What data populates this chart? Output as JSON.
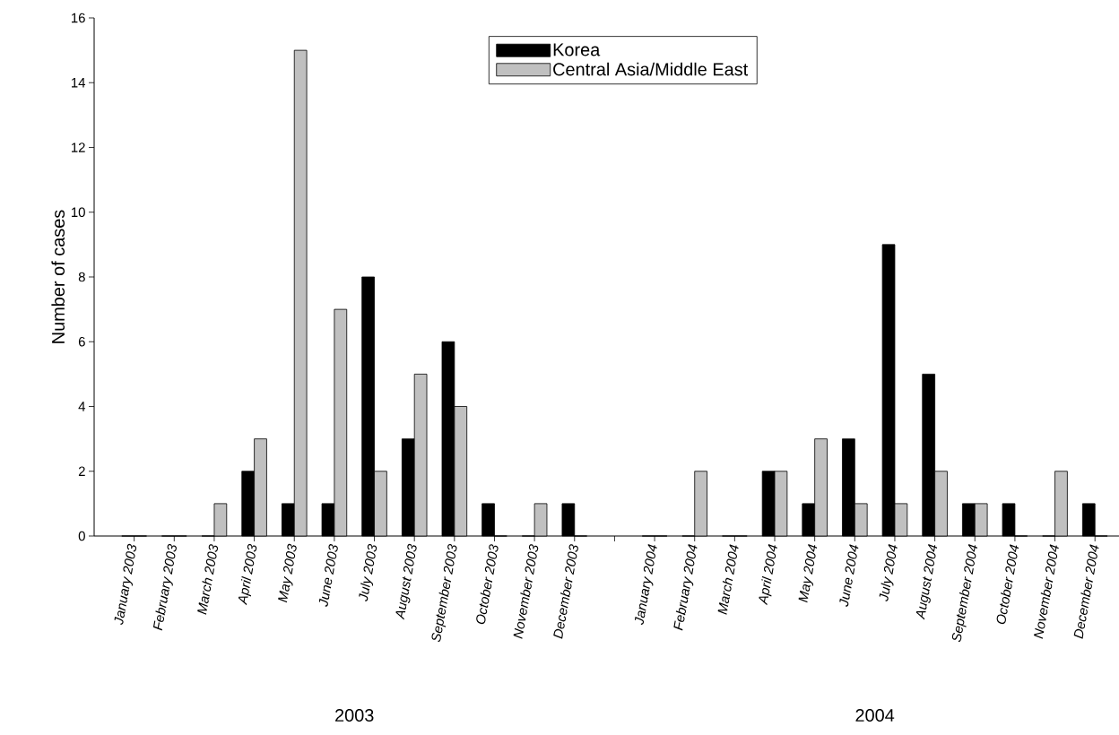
{
  "chart_data": {
    "type": "bar",
    "ylabel": "Number of cases",
    "categories": [
      "January 2003",
      "February 2003",
      "March 2003",
      "April 2003",
      "May 2003",
      "June 2003",
      "July 2003",
      "August 2003",
      "September 2003",
      "October 2003",
      "November 2003",
      "December 2003",
      null,
      "January 2004",
      "February 2004",
      "March 2004",
      "April 2004",
      "May 2004",
      "June 2004",
      "July 2004",
      "August 2004",
      "September 2004",
      "October 2004",
      "November 2004",
      "December 2004"
    ],
    "series": [
      {
        "name": "Korea",
        "color": "#000000",
        "values": [
          0,
          0,
          0,
          2,
          1,
          1,
          8,
          3,
          6,
          1,
          0,
          1,
          null,
          0,
          0,
          0,
          2,
          1,
          3,
          9,
          5,
          1,
          1,
          0,
          1
        ]
      },
      {
        "name": "Central Asia/Middle East",
        "color": "#c0c0c0",
        "values": [
          0,
          0,
          1,
          3,
          15,
          7,
          2,
          5,
          4,
          0,
          1,
          0,
          null,
          0,
          2,
          0,
          2,
          3,
          1,
          1,
          2,
          1,
          0,
          2,
          0
        ]
      }
    ],
    "ylim": [
      0,
      16
    ],
    "yticks": [
      0,
      2,
      4,
      6,
      8,
      10,
      12,
      14,
      16
    ],
    "legend": "top",
    "annotations": [
      "2003",
      "2004"
    ]
  }
}
